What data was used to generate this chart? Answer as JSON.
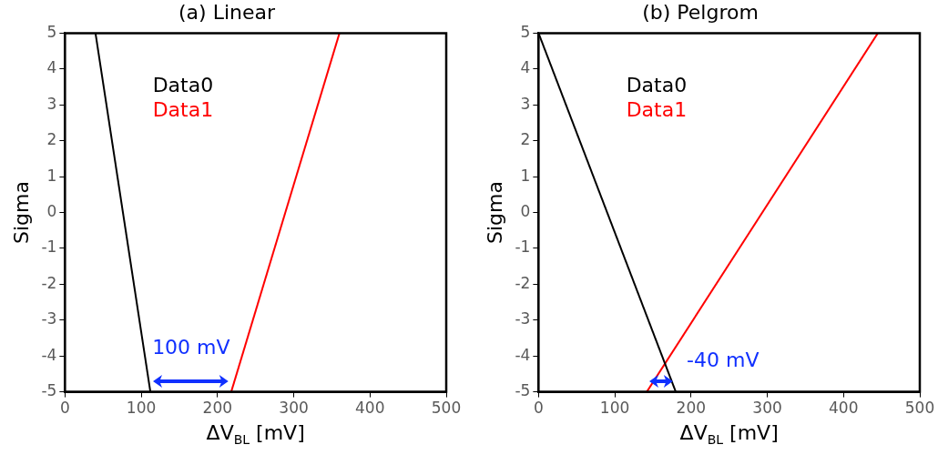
{
  "chart_data": [
    {
      "type": "line",
      "title": "(a) Linear",
      "xlabel": "ΔV$_{BL}$ [mV]",
      "ylabel": "Sigma",
      "xlim": [
        0,
        500
      ],
      "xticks": [
        0,
        100,
        200,
        300,
        400,
        500
      ],
      "ylim": [
        -5,
        5
      ],
      "yticks": [
        -5,
        -4,
        -3,
        -2,
        -1,
        0,
        1,
        2,
        3,
        4,
        5
      ],
      "grid": false,
      "legend": "top",
      "marker": "none",
      "line_style": "solid",
      "series": [
        {
          "name": "Data0",
          "color": "#000000",
          "x": [
            40,
            112
          ],
          "values": [
            5,
            -5
          ]
        },
        {
          "name": "Data1",
          "color": "#ff0000",
          "x": [
            360,
            218
          ],
          "values": [
            5,
            -5
          ]
        }
      ],
      "annotations": [
        "100 mV"
      ]
    },
    {
      "type": "line",
      "title": "(b) Pelgrom",
      "xlabel": "ΔV$_{BL}$ [mV]",
      "ylabel": "Sigma",
      "xlim": [
        0,
        500
      ],
      "xticks": [
        0,
        100,
        200,
        300,
        400,
        500
      ],
      "ylim": [
        -5,
        5
      ],
      "yticks": [
        -5,
        -4,
        -3,
        -2,
        -1,
        0,
        1,
        2,
        3,
        4,
        5
      ],
      "grid": false,
      "legend": "top",
      "marker": "none",
      "line_style": "solid",
      "series": [
        {
          "name": "Data0",
          "color": "#000000",
          "x": [
            0,
            180
          ],
          "values": [
            5,
            -5
          ]
        },
        {
          "name": "Data1",
          "color": "#ff0000",
          "x": [
            445,
            142
          ],
          "values": [
            5,
            -5
          ]
        }
      ],
      "annotations": [
        "-40 mV"
      ]
    }
  ]
}
